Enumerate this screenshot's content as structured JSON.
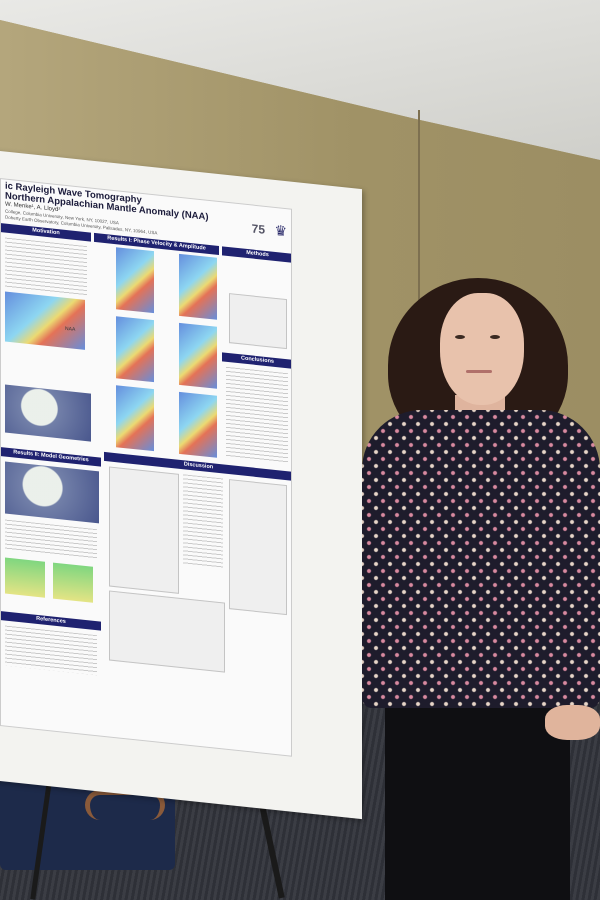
{
  "poster": {
    "title_line1": "ic Rayleigh Wave Tomography",
    "title_line2": "Northern Appalachian Mantle Anomaly (NAA)",
    "authors": "W. Menke¹, A. Lloyd²",
    "affiliation1": "College, Columbia University, New York, NY, 10027, USA",
    "affiliation2": "Doherty Earth Observatory, Columbia University, Palisades, NY, 10964, USA",
    "logo_text": "75",
    "sections": {
      "motivation": "Motivation",
      "results1": "Results I: Phase Velocity & Amplitude",
      "methods": "Methods",
      "conclusions": "Conclusions",
      "results2": "Results II: Model Geometries",
      "discussion": "Discussion",
      "references": "References"
    },
    "map_label": "NAA"
  },
  "colors": {
    "poster_header": "#1f2270",
    "wall": "#a89a74",
    "shirt": "#1e1c2c"
  }
}
